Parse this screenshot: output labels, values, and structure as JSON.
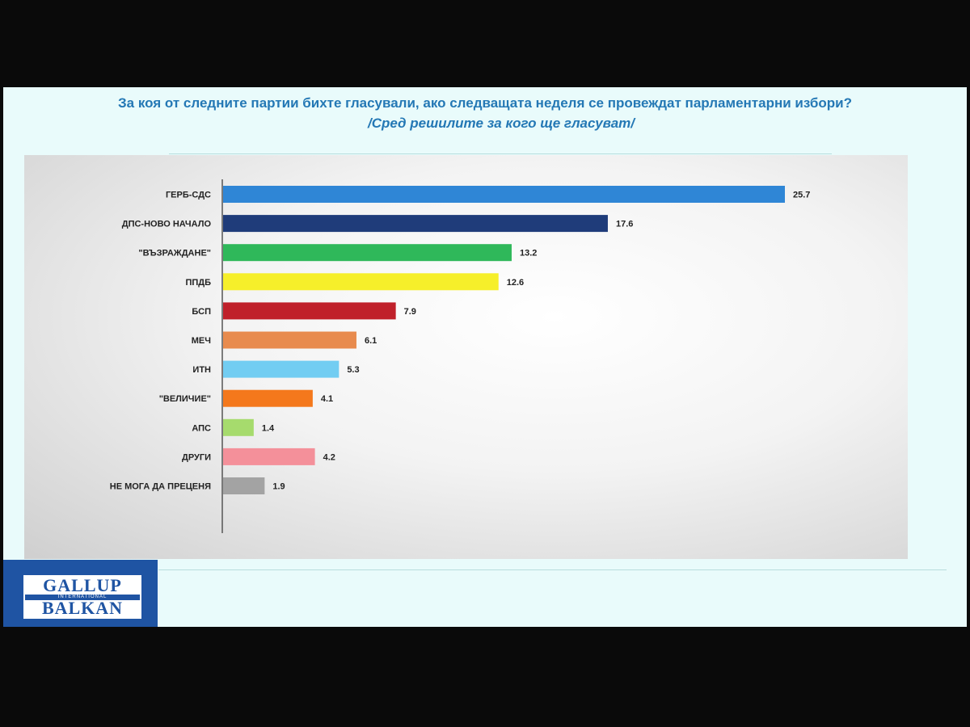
{
  "title": "За коя от следните партии бихте  гласували,  ако следващата неделя се провеждат парламентарни избори?",
  "subtitle": "/Сред решилите за кого ще гласуват/",
  "logo": {
    "line1": "GALLUP",
    "line2": "INTERNATIONAL",
    "line3": "BALKAN"
  },
  "chart_data": {
    "type": "bar",
    "orientation": "horizontal",
    "categories": [
      "ГЕРБ-СДС",
      "ДПС-НОВО НАЧАЛО",
      "\"ВЪЗРАЖДАНЕ\"",
      "ППДБ",
      "БСП",
      "МЕЧ",
      "ИТН",
      "\"ВЕЛИЧИЕ\"",
      "АПС",
      "ДРУГИ",
      "НЕ МОГА ДА ПРЕЦЕНЯ"
    ],
    "values": [
      25.7,
      17.6,
      13.2,
      12.6,
      7.9,
      6.1,
      5.3,
      4.1,
      1.4,
      4.2,
      1.9
    ],
    "value_labels": [
      "25.7",
      "17.6",
      "13.2",
      "12.6",
      "7.9",
      "6.1",
      "5.3",
      "4.1",
      "1.4",
      "4.2",
      "1.9"
    ],
    "colors": [
      "#2f86d6",
      "#1f3c7a",
      "#2fb85a",
      "#f6ef2a",
      "#c0202a",
      "#e88b4e",
      "#72cdf2",
      "#f4781c",
      "#a6db6d",
      "#f4909a",
      "#a3a3a3"
    ],
    "xlim": [
      0,
      25.7
    ],
    "grid": false,
    "legend": "none"
  }
}
